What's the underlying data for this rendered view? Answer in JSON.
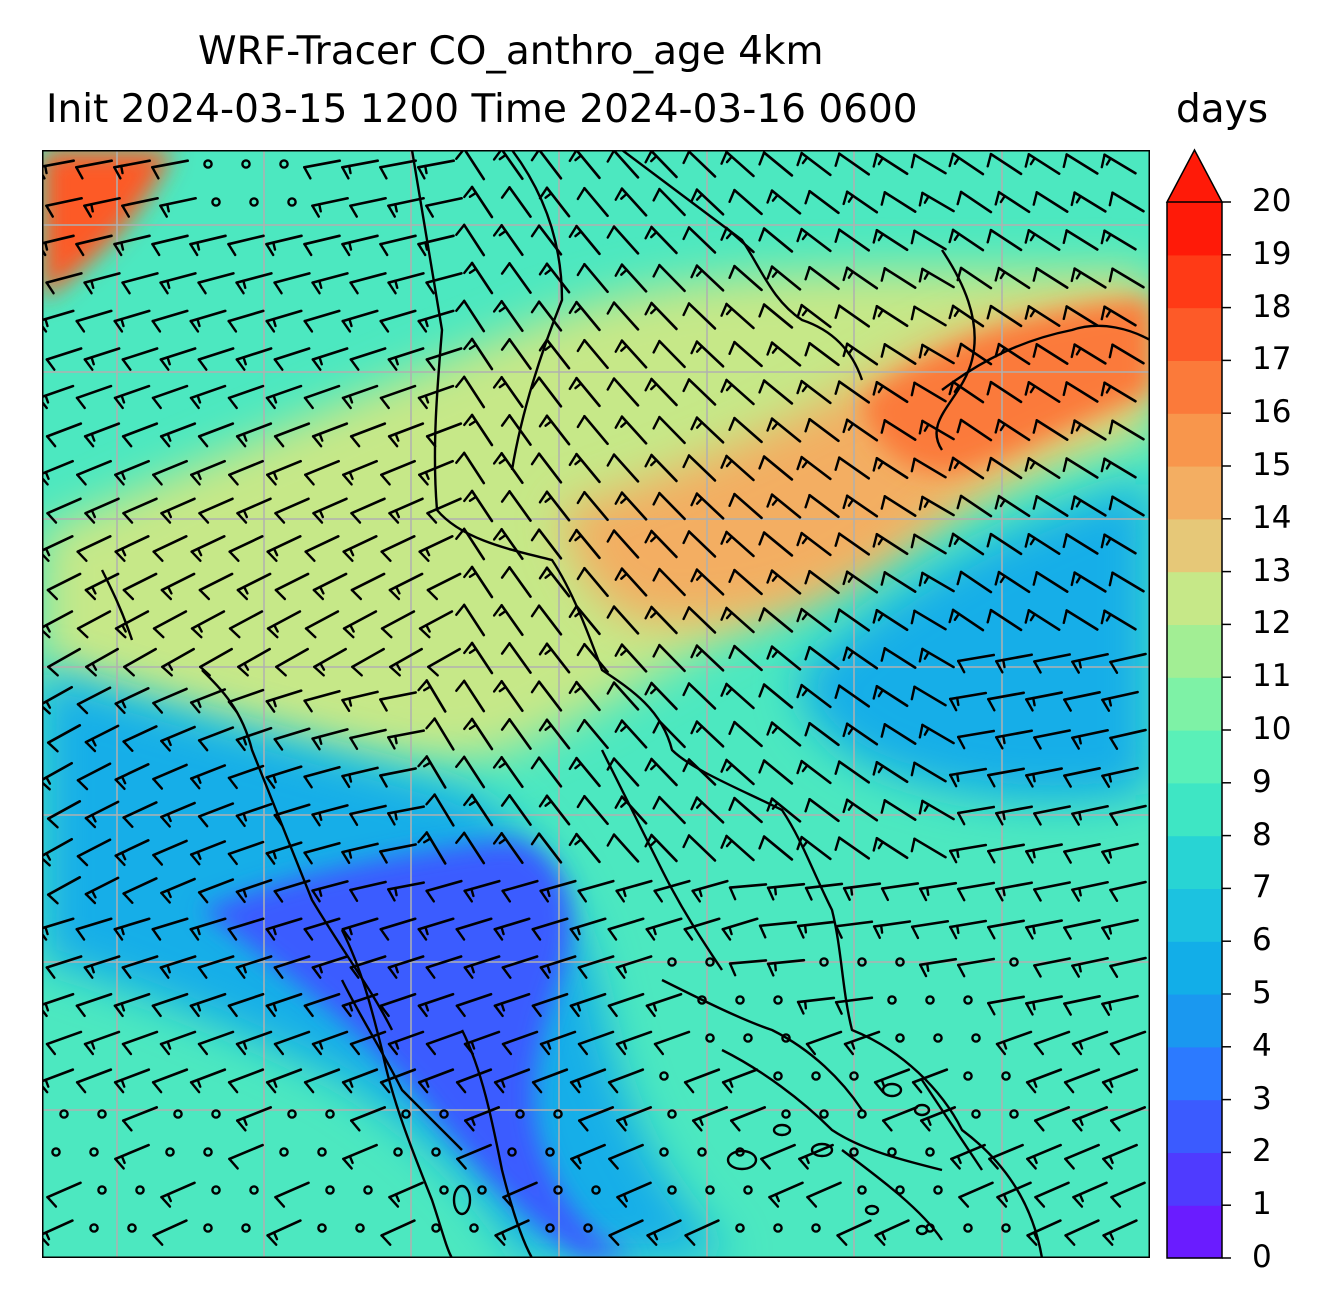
{
  "title": {
    "line1": "WRF-Tracer CO_anthro_age 4km",
    "line2": "Init 2024-03-15 1200 Time 2024-03-16 0600"
  },
  "colorbar": {
    "unit": "days",
    "ticks": [
      "0",
      "1",
      "2",
      "3",
      "4",
      "5",
      "6",
      "7",
      "8",
      "9",
      "10",
      "11",
      "12",
      "13",
      "14",
      "15",
      "16",
      "17",
      "18",
      "19",
      "20"
    ],
    "colors": [
      "#6a1cff",
      "#4f3bff",
      "#3b5bff",
      "#2c7aff",
      "#1a98f0",
      "#12aee8",
      "#1cc2e0",
      "#28d4d4",
      "#3ee6c4",
      "#5af0b8",
      "#7ef2a6",
      "#a2ee94",
      "#c6e888",
      "#e6c878",
      "#f3ae62",
      "#f8964c",
      "#fb7a3a",
      "#fd5a28",
      "#ff3a16",
      "#ff1a08"
    ],
    "extend_color": "#ff1a08"
  },
  "map": {
    "field": "CO_anthro_age",
    "background": "#4ce8c0",
    "regions": [
      {
        "name": "plume-band",
        "color": "#c6e888"
      },
      {
        "name": "plume-core",
        "color": "#f3ae62"
      },
      {
        "name": "plume-max",
        "color": "#fb7a3a"
      },
      {
        "name": "clean-band-east",
        "color": "#12aee8"
      },
      {
        "name": "clean-core-southwest",
        "color": "#3b5bff"
      },
      {
        "name": "clean-band-southwest",
        "color": "#12aee8"
      },
      {
        "name": "northwest-corner",
        "color": "#fd5a28"
      }
    ],
    "gridlines": "on",
    "coastlines": "on",
    "wind_barbs": "on"
  }
}
